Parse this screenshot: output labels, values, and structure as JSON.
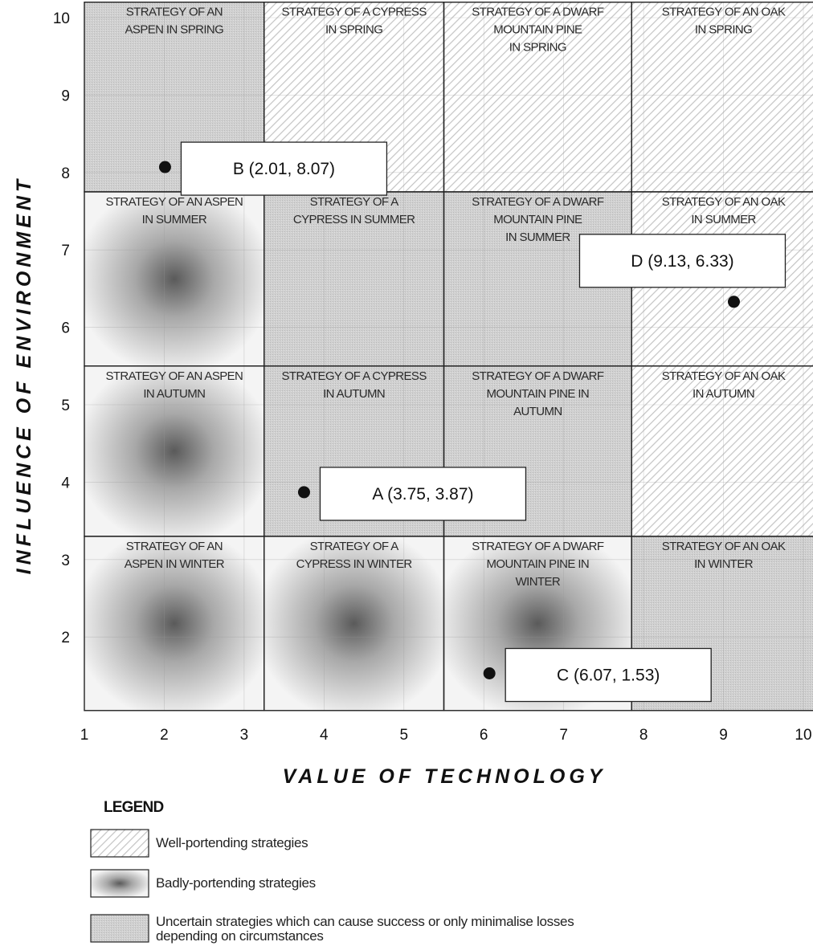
{
  "chart_data": {
    "type": "scatter",
    "xlabel": "VALUE OF TECHNOLOGY",
    "ylabel": "INFLUENCE OF ENVIRONMENT",
    "xlim": [
      1,
      10
    ],
    "ylim": [
      0.7,
      10
    ],
    "x_ticks": [
      "1",
      "2",
      "3",
      "4",
      "5",
      "6",
      "7",
      "8",
      "9",
      "10"
    ],
    "y_ticks": [
      "2",
      "3",
      "4",
      "5",
      "6",
      "7",
      "8",
      "9",
      "10"
    ],
    "grid": true,
    "legend_position": "bottom-left",
    "columns": [
      {
        "name": "Aspen",
        "x_range": [
          1,
          3.25
        ]
      },
      {
        "name": "Cypress",
        "x_range": [
          3.25,
          5.5
        ]
      },
      {
        "name": "Dwarf Mountain Pine",
        "x_range": [
          5.5,
          7.85
        ]
      },
      {
        "name": "Oak",
        "x_range": [
          7.85,
          10.15
        ]
      }
    ],
    "rows": [
      {
        "name": "Spring",
        "y_range": [
          7.75,
          10.2
        ]
      },
      {
        "name": "Summer",
        "y_range": [
          5.5,
          7.75
        ]
      },
      {
        "name": "Autumn",
        "y_range": [
          3.3,
          5.5
        ]
      },
      {
        "name": "Winter",
        "y_range": [
          1.05,
          3.3
        ]
      }
    ],
    "cells": [
      {
        "row": 0,
        "col": 0,
        "category": "uncertain",
        "label": [
          "STRATEGY OF AN",
          "ASPEN IN SPRING"
        ]
      },
      {
        "row": 0,
        "col": 1,
        "category": "well",
        "label": [
          "STRATEGY OF A CYPRESS",
          "IN SPRING"
        ]
      },
      {
        "row": 0,
        "col": 2,
        "category": "well",
        "label": [
          "STRATEGY OF A DWARF",
          "MOUNTAIN PINE",
          "IN SPRING"
        ]
      },
      {
        "row": 0,
        "col": 3,
        "category": "well",
        "label": [
          "STRATEGY OF AN OAK",
          "IN SPRING"
        ]
      },
      {
        "row": 1,
        "col": 0,
        "category": "bad",
        "label": [
          "STRATEGY OF AN ASPEN",
          "IN SUMMER"
        ]
      },
      {
        "row": 1,
        "col": 1,
        "category": "uncertain",
        "label": [
          "STRATEGY OF A",
          "CYPRESS IN SUMMER"
        ]
      },
      {
        "row": 1,
        "col": 2,
        "category": "uncertain",
        "label": [
          "STRATEGY OF A DWARF",
          "MOUNTAIN PINE",
          "IN SUMMER"
        ]
      },
      {
        "row": 1,
        "col": 3,
        "category": "well",
        "label": [
          "STRATEGY OF AN OAK",
          "IN SUMMER"
        ]
      },
      {
        "row": 2,
        "col": 0,
        "category": "bad",
        "label": [
          "STRATEGY OF AN ASPEN",
          "IN AUTUMN"
        ]
      },
      {
        "row": 2,
        "col": 1,
        "category": "uncertain",
        "label": [
          "STRATEGY OF A CYPRESS",
          "IN AUTUMN"
        ]
      },
      {
        "row": 2,
        "col": 2,
        "category": "uncertain",
        "label": [
          "STRATEGY OF A DWARF",
          "MOUNTAIN PINE IN",
          "AUTUMN"
        ]
      },
      {
        "row": 2,
        "col": 3,
        "category": "well",
        "label": [
          "STRATEGY OF AN OAK",
          "IN AUTUMN"
        ]
      },
      {
        "row": 3,
        "col": 0,
        "category": "bad",
        "label": [
          "STRATEGY OF AN",
          "ASPEN IN WINTER"
        ]
      },
      {
        "row": 3,
        "col": 1,
        "category": "bad",
        "label": [
          "STRATEGY OF A",
          "CYPRESS IN WINTER"
        ]
      },
      {
        "row": 3,
        "col": 2,
        "category": "bad",
        "label": [
          "STRATEGY OF A DWARF",
          "MOUNTAIN PINE IN",
          "WINTER"
        ]
      },
      {
        "row": 3,
        "col": 3,
        "category": "uncertain",
        "label": [
          "STRATEGY OF AN OAK",
          "IN WINTER"
        ]
      }
    ],
    "points": [
      {
        "name": "A",
        "x": 3.75,
        "y": 3.87,
        "label": "A (3.75, 3.87)",
        "label_side": "right"
      },
      {
        "name": "B",
        "x": 2.01,
        "y": 8.07,
        "label": "B (2.01, 8.07)",
        "label_side": "right"
      },
      {
        "name": "C",
        "x": 6.07,
        "y": 1.53,
        "label": "C (6.07, 1.53)",
        "label_side": "right"
      },
      {
        "name": "D",
        "x": 9.13,
        "y": 6.33,
        "label": "D (9.13, 6.33)",
        "label_side": "above-left"
      }
    ],
    "legend": {
      "title": "LEGEND",
      "items": [
        {
          "category": "well",
          "lines": [
            "Well-portending strategies"
          ]
        },
        {
          "category": "bad",
          "lines": [
            "Badly-portending strategies"
          ]
        },
        {
          "category": "uncertain",
          "lines": [
            "Uncertain strategies which can cause success or only minimalise losses",
            "depending on circumstances"
          ]
        }
      ]
    }
  }
}
